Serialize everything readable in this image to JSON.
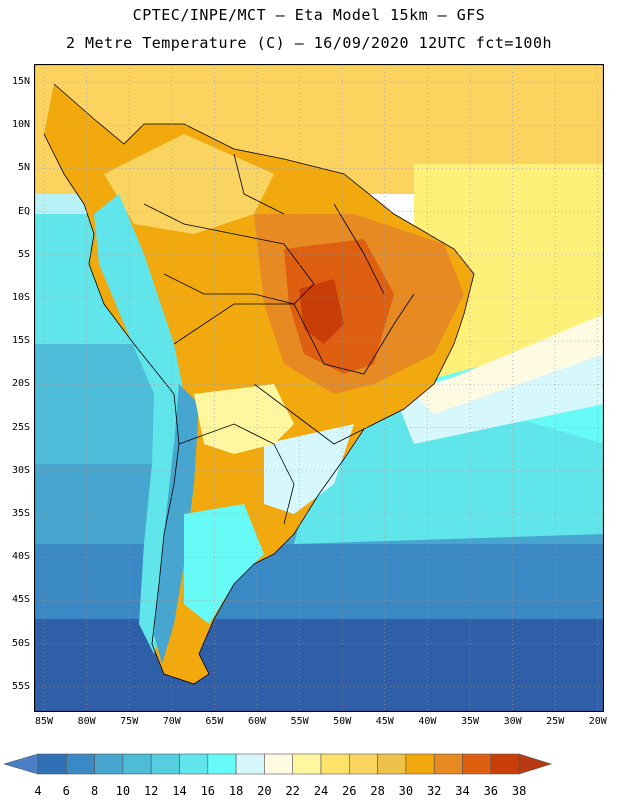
{
  "header": {
    "line1": "CPTEC/INPE/MCT –  Eta Model 15km – GFS",
    "line2": "2 Metre Temperature (C) – 16/09/2020 12UTC fct=100h"
  },
  "map": {
    "lat_labels": [
      "15N",
      "10N",
      "5N",
      "EQ",
      "5S",
      "10S",
      "15S",
      "20S",
      "25S",
      "30S",
      "35S",
      "40S",
      "45S",
      "50S",
      "55S"
    ],
    "lon_labels": [
      "85W",
      "80W",
      "75W",
      "70W",
      "65W",
      "60W",
      "55W",
      "50W",
      "45W",
      "40W",
      "35W",
      "30W",
      "25W",
      "20W"
    ]
  },
  "colorbar": {
    "labels": [
      "4",
      "6",
      "8",
      "10",
      "12",
      "14",
      "16",
      "18",
      "20",
      "22",
      "24",
      "26",
      "28",
      "30",
      "32",
      "34",
      "36",
      "38"
    ],
    "colors": [
      "#4a7fc6",
      "#2e6fb5",
      "#3a89c4",
      "#46a6cf",
      "#4cbcd9",
      "#55cfe0",
      "#5fe5ea",
      "#66fbf7",
      "#d6f7fb",
      "#fffbe3",
      "#fff6a0",
      "#fde36c",
      "#f9d461",
      "#eec14b",
      "#f2a90e",
      "#e88a22",
      "#df5f10",
      "#c93d08",
      "#b83a12"
    ]
  }
}
